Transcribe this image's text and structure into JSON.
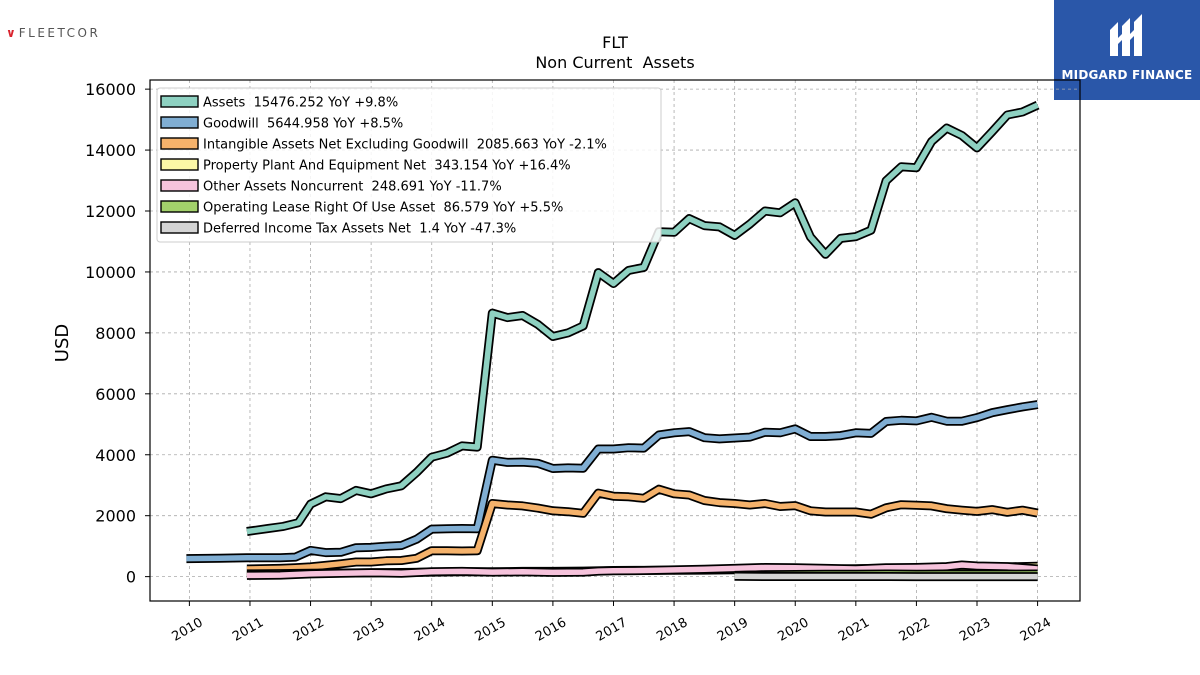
{
  "branding": {
    "left_logo_text": "FLEETCOR",
    "left_logo_mark": "∨",
    "right_logo_text": "MIDGARD FINANCE"
  },
  "chart_data": {
    "type": "line",
    "title": "FLT",
    "subtitle": "Non Current  Assets",
    "ylabel": "USD",
    "xlabel": "",
    "ylim": [
      -800,
      16300
    ],
    "xlim": [
      2009.35,
      2024.7
    ],
    "yticks": [
      0,
      2000,
      4000,
      6000,
      8000,
      10000,
      12000,
      14000,
      16000
    ],
    "xticks": [
      2010,
      2011,
      2012,
      2013,
      2014,
      2015,
      2016,
      2017,
      2018,
      2019,
      2020,
      2021,
      2022,
      2023,
      2024
    ],
    "grid": true,
    "legend_position": "top-left",
    "series": [
      {
        "name": "Assets",
        "legend": "Assets  15476.252 YoY +9.8%",
        "color": "#8ed1c1",
        "points": [
          [
            2010.95,
            1480
          ],
          [
            2011.3,
            1580
          ],
          [
            2011.55,
            1650
          ],
          [
            2011.8,
            1770
          ],
          [
            2012.0,
            2380
          ],
          [
            2012.25,
            2620
          ],
          [
            2012.5,
            2560
          ],
          [
            2012.75,
            2830
          ],
          [
            2013.0,
            2720
          ],
          [
            2013.25,
            2880
          ],
          [
            2013.5,
            2980
          ],
          [
            2013.75,
            3420
          ],
          [
            2014.0,
            3920
          ],
          [
            2014.25,
            4050
          ],
          [
            2014.5,
            4290
          ],
          [
            2014.75,
            4250
          ],
          [
            2015.0,
            8650
          ],
          [
            2015.25,
            8500
          ],
          [
            2015.5,
            8570
          ],
          [
            2015.75,
            8280
          ],
          [
            2016.0,
            7880
          ],
          [
            2016.25,
            8000
          ],
          [
            2016.5,
            8230
          ],
          [
            2016.75,
            9980
          ],
          [
            2017.0,
            9620
          ],
          [
            2017.25,
            10050
          ],
          [
            2017.5,
            10150
          ],
          [
            2017.75,
            11320
          ],
          [
            2018.0,
            11300
          ],
          [
            2018.25,
            11750
          ],
          [
            2018.5,
            11520
          ],
          [
            2018.75,
            11480
          ],
          [
            2019.0,
            11200
          ],
          [
            2019.25,
            11570
          ],
          [
            2019.5,
            12000
          ],
          [
            2019.75,
            11940
          ],
          [
            2020.0,
            12270
          ],
          [
            2020.25,
            11150
          ],
          [
            2020.5,
            10580
          ],
          [
            2020.75,
            11100
          ],
          [
            2021.0,
            11160
          ],
          [
            2021.25,
            11370
          ],
          [
            2021.5,
            12990
          ],
          [
            2021.75,
            13450
          ],
          [
            2022.0,
            13420
          ],
          [
            2022.25,
            14280
          ],
          [
            2022.5,
            14720
          ],
          [
            2022.75,
            14480
          ],
          [
            2023.0,
            14070
          ],
          [
            2023.25,
            14600
          ],
          [
            2023.5,
            15150
          ],
          [
            2023.75,
            15250
          ],
          [
            2024.0,
            15476
          ]
        ]
      },
      {
        "name": "Goodwill",
        "legend": "Goodwill  5644.958 YoY +8.5%",
        "color": "#80aed3",
        "points": [
          [
            2009.95,
            590
          ],
          [
            2010.5,
            600
          ],
          [
            2010.95,
            620
          ],
          [
            2011.5,
            620
          ],
          [
            2011.75,
            640
          ],
          [
            2012.0,
            860
          ],
          [
            2012.25,
            790
          ],
          [
            2012.5,
            800
          ],
          [
            2012.75,
            950
          ],
          [
            2013.0,
            960
          ],
          [
            2013.25,
            1000
          ],
          [
            2013.5,
            1020
          ],
          [
            2013.75,
            1230
          ],
          [
            2014.0,
            1560
          ],
          [
            2014.25,
            1570
          ],
          [
            2014.5,
            1580
          ],
          [
            2014.75,
            1570
          ],
          [
            2015.0,
            3820
          ],
          [
            2015.25,
            3750
          ],
          [
            2015.5,
            3760
          ],
          [
            2015.75,
            3720
          ],
          [
            2016.0,
            3550
          ],
          [
            2016.25,
            3570
          ],
          [
            2016.5,
            3560
          ],
          [
            2016.75,
            4190
          ],
          [
            2017.0,
            4190
          ],
          [
            2017.25,
            4230
          ],
          [
            2017.5,
            4220
          ],
          [
            2017.75,
            4650
          ],
          [
            2018.0,
            4720
          ],
          [
            2018.25,
            4760
          ],
          [
            2018.5,
            4560
          ],
          [
            2018.75,
            4520
          ],
          [
            2019.0,
            4550
          ],
          [
            2019.25,
            4580
          ],
          [
            2019.5,
            4740
          ],
          [
            2019.75,
            4720
          ],
          [
            2020.0,
            4850
          ],
          [
            2020.25,
            4600
          ],
          [
            2020.5,
            4600
          ],
          [
            2020.75,
            4630
          ],
          [
            2021.0,
            4720
          ],
          [
            2021.25,
            4700
          ],
          [
            2021.5,
            5090
          ],
          [
            2021.75,
            5130
          ],
          [
            2022.0,
            5110
          ],
          [
            2022.25,
            5230
          ],
          [
            2022.5,
            5100
          ],
          [
            2022.75,
            5100
          ],
          [
            2023.0,
            5220
          ],
          [
            2023.25,
            5380
          ],
          [
            2023.5,
            5480
          ],
          [
            2023.75,
            5570
          ],
          [
            2024.0,
            5645
          ]
        ]
      },
      {
        "name": "Intangible Assets Net Excluding Goodwill",
        "legend": "Intangible Assets Net Excluding Goodwill  2085.663 YoY -2.1%",
        "color": "#f5b26b",
        "points": [
          [
            2010.95,
            250
          ],
          [
            2011.5,
            270
          ],
          [
            2011.75,
            290
          ],
          [
            2012.0,
            320
          ],
          [
            2012.25,
            370
          ],
          [
            2012.5,
            420
          ],
          [
            2012.75,
            480
          ],
          [
            2013.0,
            480
          ],
          [
            2013.25,
            520
          ],
          [
            2013.5,
            530
          ],
          [
            2013.75,
            600
          ],
          [
            2014.0,
            850
          ],
          [
            2014.25,
            850
          ],
          [
            2014.5,
            840
          ],
          [
            2014.75,
            850
          ],
          [
            2015.0,
            2400
          ],
          [
            2015.25,
            2350
          ],
          [
            2015.5,
            2320
          ],
          [
            2015.75,
            2250
          ],
          [
            2016.0,
            2160
          ],
          [
            2016.25,
            2130
          ],
          [
            2016.5,
            2080
          ],
          [
            2016.75,
            2740
          ],
          [
            2017.0,
            2640
          ],
          [
            2017.25,
            2620
          ],
          [
            2017.5,
            2570
          ],
          [
            2017.75,
            2870
          ],
          [
            2018.0,
            2720
          ],
          [
            2018.25,
            2680
          ],
          [
            2018.5,
            2500
          ],
          [
            2018.75,
            2430
          ],
          [
            2019.0,
            2400
          ],
          [
            2019.25,
            2350
          ],
          [
            2019.5,
            2400
          ],
          [
            2019.75,
            2300
          ],
          [
            2020.0,
            2330
          ],
          [
            2020.25,
            2160
          ],
          [
            2020.5,
            2120
          ],
          [
            2020.75,
            2120
          ],
          [
            2021.0,
            2120
          ],
          [
            2021.25,
            2050
          ],
          [
            2021.5,
            2260
          ],
          [
            2021.75,
            2360
          ],
          [
            2022.0,
            2340
          ],
          [
            2022.25,
            2320
          ],
          [
            2022.5,
            2230
          ],
          [
            2022.75,
            2180
          ],
          [
            2023.0,
            2140
          ],
          [
            2023.25,
            2200
          ],
          [
            2023.5,
            2110
          ],
          [
            2023.75,
            2180
          ],
          [
            2024.0,
            2086
          ]
        ]
      },
      {
        "name": "Property Plant And Equipment Net",
        "legend": "Property Plant And Equipment Net  343.154 YoY +16.4%",
        "color": "#fbf7a6",
        "points": [
          [
            2010.95,
            90
          ],
          [
            2011.5,
            100
          ],
          [
            2012.0,
            110
          ],
          [
            2012.5,
            120
          ],
          [
            2013.0,
            130
          ],
          [
            2013.5,
            135
          ],
          [
            2014.0,
            150
          ],
          [
            2014.5,
            160
          ],
          [
            2015.0,
            160
          ],
          [
            2015.5,
            170
          ],
          [
            2016.0,
            170
          ],
          [
            2016.5,
            180
          ],
          [
            2017.0,
            200
          ],
          [
            2017.5,
            205
          ],
          [
            2018.0,
            210
          ],
          [
            2018.5,
            215
          ],
          [
            2019.0,
            225
          ],
          [
            2019.5,
            235
          ],
          [
            2020.0,
            240
          ],
          [
            2020.5,
            245
          ],
          [
            2021.0,
            260
          ],
          [
            2021.5,
            270
          ],
          [
            2022.0,
            285
          ],
          [
            2022.5,
            290
          ],
          [
            2023.0,
            305
          ],
          [
            2023.5,
            320
          ],
          [
            2024.0,
            343
          ]
        ]
      },
      {
        "name": "Other Assets Noncurrent",
        "legend": "Other Assets Noncurrent  248.691 YoY -11.7%",
        "color": "#f6c3dc",
        "points": [
          [
            2010.95,
            40
          ],
          [
            2011.5,
            50
          ],
          [
            2012.0,
            90
          ],
          [
            2012.5,
            110
          ],
          [
            2013.0,
            130
          ],
          [
            2013.5,
            110
          ],
          [
            2014.0,
            160
          ],
          [
            2014.5,
            170
          ],
          [
            2015.0,
            150
          ],
          [
            2015.5,
            160
          ],
          [
            2016.0,
            140
          ],
          [
            2016.5,
            150
          ],
          [
            2016.75,
            180
          ],
          [
            2017.0,
            190
          ],
          [
            2017.5,
            200
          ],
          [
            2018.0,
            220
          ],
          [
            2018.5,
            240
          ],
          [
            2019.0,
            270
          ],
          [
            2019.5,
            300
          ],
          [
            2020.0,
            290
          ],
          [
            2020.5,
            270
          ],
          [
            2021.0,
            250
          ],
          [
            2021.5,
            290
          ],
          [
            2022.0,
            300
          ],
          [
            2022.5,
            330
          ],
          [
            2022.75,
            380
          ],
          [
            2023.0,
            350
          ],
          [
            2023.5,
            330
          ],
          [
            2024.0,
            249
          ]
        ]
      },
      {
        "name": "Operating Lease Right Of Use Asset",
        "legend": "Operating Lease Right Of Use Asset  86.579 YoY +5.5%",
        "color": "#a3d16b",
        "points": [
          [
            2019.0,
            40
          ],
          [
            2019.5,
            60
          ],
          [
            2020.0,
            70
          ],
          [
            2020.5,
            75
          ],
          [
            2021.0,
            80
          ],
          [
            2021.5,
            85
          ],
          [
            2022.0,
            80
          ],
          [
            2022.5,
            82
          ],
          [
            2023.0,
            82
          ],
          [
            2023.5,
            84
          ],
          [
            2024.0,
            87
          ]
        ]
      },
      {
        "name": "Deferred Income Tax Assets Net",
        "legend": "Deferred Income Tax Assets Net  1.4 YoY -47.3%",
        "color": "#d4d4d4",
        "points": [
          [
            2019.0,
            10
          ],
          [
            2019.5,
            5
          ],
          [
            2020.0,
            5
          ],
          [
            2020.5,
            4
          ],
          [
            2021.0,
            3
          ],
          [
            2021.5,
            3
          ],
          [
            2022.0,
            2
          ],
          [
            2022.5,
            2
          ],
          [
            2023.0,
            2
          ],
          [
            2023.5,
            2
          ],
          [
            2024.0,
            1.4
          ]
        ]
      }
    ]
  }
}
